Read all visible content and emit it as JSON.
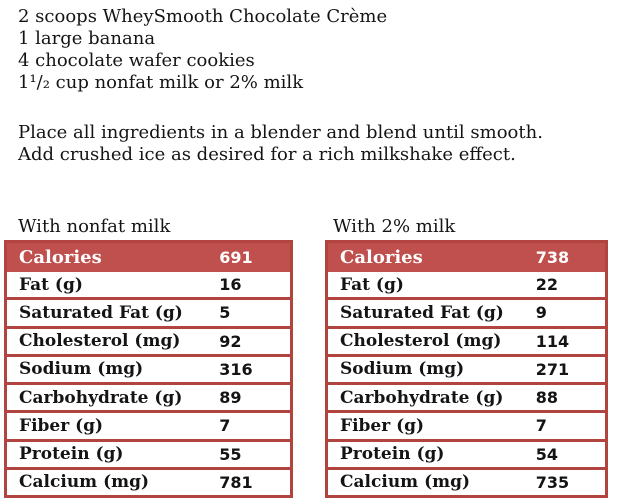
{
  "recipe": {
    "ingredients": [
      "2 scoops WheySmooth Chocolate Crème",
      "1 large banana",
      "4 chocolate wafer cookies",
      "1¹/₂ cup nonfat milk or 2% milk"
    ],
    "instructions": [
      "Place all ingredients in a blender and blend until smooth.",
      "Add crushed ice as desired for a rich milkshake effect."
    ]
  },
  "colors": {
    "table_header_fill": "#c0504d",
    "table_border": "#b2443f",
    "header_text": "#ffffff",
    "body_text": "#141414"
  },
  "tables": [
    {
      "caption": "With nonfat milk",
      "header": {
        "label": "Calories",
        "value": "691"
      },
      "rows": [
        {
          "label": "Fat (g)",
          "value": "16"
        },
        {
          "label": "Saturated Fat (g)",
          "value": "5"
        },
        {
          "label": "Cholesterol (mg)",
          "value": "92"
        },
        {
          "label": "Sodium (mg)",
          "value": "316"
        },
        {
          "label": "Carbohydrate (g)",
          "value": "89"
        },
        {
          "label": "Fiber (g)",
          "value": "7"
        },
        {
          "label": "Protein (g)",
          "value": "55"
        },
        {
          "label": "Calcium (mg)",
          "value": "781"
        }
      ]
    },
    {
      "caption": "With 2% milk",
      "header": {
        "label": "Calories",
        "value": "738"
      },
      "rows": [
        {
          "label": "Fat (g)",
          "value": "22"
        },
        {
          "label": "Saturated Fat (g)",
          "value": "9"
        },
        {
          "label": "Cholesterol (mg)",
          "value": "114"
        },
        {
          "label": "Sodium (mg)",
          "value": "271"
        },
        {
          "label": "Carbohydrate (g)",
          "value": "88"
        },
        {
          "label": "Fiber (g)",
          "value": "7"
        },
        {
          "label": "Protein (g)",
          "value": "54"
        },
        {
          "label": "Calcium (mg)",
          "value": "735"
        }
      ]
    }
  ]
}
